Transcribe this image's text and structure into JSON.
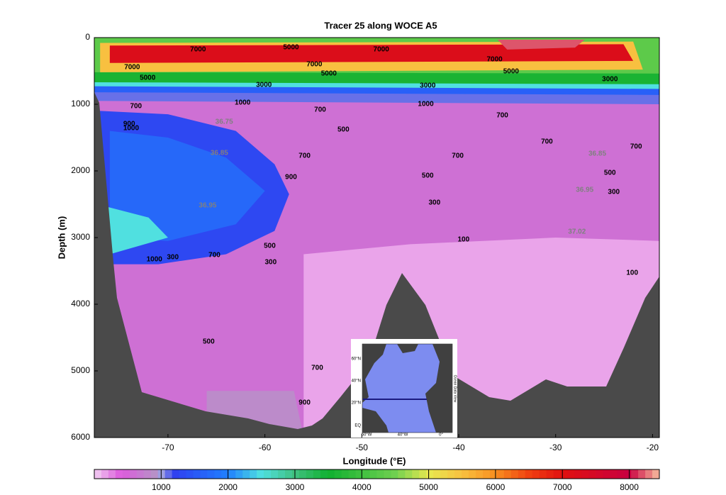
{
  "chart_data": {
    "type": "contour",
    "title": "Tracer 25 along WOCE A5",
    "xlabel": "Longitude (°E)",
    "ylabel": "Depth (m)",
    "xlim": [
      -77.6,
      -19.3
    ],
    "ylim": [
      0,
      6000
    ],
    "y_reversed": true,
    "xticks": [
      -70,
      -60,
      -50,
      -40,
      -30,
      -20
    ],
    "yticks": [
      0,
      1000,
      2000,
      3000,
      4000,
      5000,
      6000
    ],
    "colorbar": {
      "clim": [
        0,
        8450
      ],
      "ticks": [
        1000,
        2000,
        3000,
        4000,
        5000,
        6000,
        7000,
        8000
      ],
      "colormap": [
        [
          0,
          "#f2d0f2"
        ],
        [
          400,
          "#dc5adc"
        ],
        [
          900,
          "#b890c8"
        ],
        [
          1000,
          "#a0a0e0"
        ],
        [
          1200,
          "#3040f0"
        ],
        [
          2000,
          "#2080ff"
        ],
        [
          2500,
          "#50e0e0"
        ],
        [
          3000,
          "#40c080"
        ],
        [
          3500,
          "#10b030"
        ],
        [
          4500,
          "#70d050"
        ],
        [
          5000,
          "#e8e850"
        ],
        [
          5500,
          "#f8c040"
        ],
        [
          6000,
          "#f89020"
        ],
        [
          6500,
          "#f04010"
        ],
        [
          7000,
          "#e01010"
        ],
        [
          8000,
          "#c80040"
        ],
        [
          8450,
          "#f8c0a0"
        ]
      ]
    },
    "regions": [
      {
        "value": 600,
        "points": [
          [
            -77.6,
            0
          ],
          [
            -19.3,
            0
          ],
          [
            -19.3,
            6000
          ],
          [
            -77.6,
            6000
          ]
        ]
      },
      {
        "value": 150,
        "points": [
          [
            -56,
            3250
          ],
          [
            -45,
            3100
          ],
          [
            -30,
            3000
          ],
          [
            -19.3,
            3050
          ],
          [
            -19.3,
            6000
          ],
          [
            -56,
            6000
          ]
        ]
      },
      {
        "value": 850,
        "points": [
          [
            -66,
            5300
          ],
          [
            -57,
            5300
          ],
          [
            -56,
            6000
          ],
          [
            -66,
            6000
          ]
        ]
      },
      {
        "value": 1300,
        "points": [
          [
            -77,
            1100
          ],
          [
            -70,
            1150
          ],
          [
            -63,
            1400
          ],
          [
            -59,
            1900
          ],
          [
            -57.5,
            2350
          ],
          [
            -59,
            2900
          ],
          [
            -64,
            3250
          ],
          [
            -71,
            3400
          ],
          [
            -76.5,
            3400
          ],
          [
            -77.5,
            2500
          ],
          [
            -77.5,
            1200
          ]
        ]
      },
      {
        "value": 1700,
        "points": [
          [
            -76,
            1400
          ],
          [
            -70,
            1500
          ],
          [
            -64,
            1800
          ],
          [
            -60,
            2300
          ],
          [
            -63,
            2800
          ],
          [
            -70,
            3050
          ],
          [
            -76,
            3000
          ]
        ]
      },
      {
        "value": 2500,
        "points": [
          [
            -77.3,
            2500
          ],
          [
            -72,
            2700
          ],
          [
            -70,
            3000
          ],
          [
            -76,
            3250
          ],
          [
            -77.3,
            3200
          ]
        ]
      },
      {
        "value": 4300,
        "points": [
          [
            -77.6,
            0
          ],
          [
            -19.3,
            0
          ],
          [
            -19.3,
            700
          ],
          [
            -77.6,
            700
          ]
        ]
      },
      {
        "value": 1100,
        "points": [
          [
            -77.6,
            800
          ],
          [
            -19.3,
            850
          ],
          [
            -19.3,
            1000
          ],
          [
            -77.6,
            950
          ]
        ]
      },
      {
        "value": 1600,
        "points": [
          [
            -77.6,
            720
          ],
          [
            -19.3,
            760
          ],
          [
            -19.3,
            860
          ],
          [
            -77.6,
            820
          ]
        ]
      },
      {
        "value": 2500,
        "points": [
          [
            -77.6,
            660
          ],
          [
            -19.3,
            690
          ],
          [
            -19.3,
            770
          ],
          [
            -77.6,
            730
          ]
        ]
      },
      {
        "value": 3600,
        "points": [
          [
            -77.6,
            520
          ],
          [
            -19.3,
            540
          ],
          [
            -19.3,
            700
          ],
          [
            -77.6,
            670
          ]
        ]
      },
      {
        "value": 5500,
        "points": [
          [
            -77,
            80
          ],
          [
            -22,
            60
          ],
          [
            -21,
            480
          ],
          [
            -77,
            520
          ]
        ]
      },
      {
        "value": 7200,
        "points": [
          [
            -76,
            120
          ],
          [
            -23,
            100
          ],
          [
            -22,
            350
          ],
          [
            -76,
            380
          ]
        ]
      },
      {
        "value": 8200,
        "points": [
          [
            -36,
            30
          ],
          [
            -27,
            30
          ],
          [
            -28,
            150
          ],
          [
            -35,
            180
          ]
        ]
      }
    ],
    "contour_labels": [
      {
        "level": 7000,
        "x": -66.9,
        "y": 181
      },
      {
        "level": 5000,
        "x": -57.3,
        "y": 149
      },
      {
        "level": 7000,
        "x": -48.0,
        "y": 181
      },
      {
        "level": 7000,
        "x": -73.7,
        "y": 447
      },
      {
        "level": 7000,
        "x": -54.9,
        "y": 404
      },
      {
        "level": 7000,
        "x": -36.3,
        "y": 330
      },
      {
        "level": 5000,
        "x": -72.1,
        "y": 606
      },
      {
        "level": 5000,
        "x": -53.4,
        "y": 543
      },
      {
        "level": 5000,
        "x": -34.6,
        "y": 511
      },
      {
        "level": 3000,
        "x": -60.1,
        "y": 713
      },
      {
        "level": 3000,
        "x": -43.2,
        "y": 723
      },
      {
        "level": 3000,
        "x": -24.4,
        "y": 628
      },
      {
        "level": 700,
        "x": -73.3,
        "y": 1032
      },
      {
        "level": 1000,
        "x": -62.3,
        "y": 979
      },
      {
        "level": 700,
        "x": -54.3,
        "y": 1085
      },
      {
        "level": 1000,
        "x": -43.4,
        "y": 1000
      },
      {
        "level": 700,
        "x": -35.5,
        "y": 1170
      },
      {
        "level": 500,
        "x": -51.9,
        "y": 1383
      },
      {
        "level": 900,
        "x": -74.0,
        "y": 1298
      },
      {
        "level": 1000,
        "x": -73.8,
        "y": 1362
      },
      {
        "level": 700,
        "x": -55.9,
        "y": 1777
      },
      {
        "level": 700,
        "x": -30.9,
        "y": 1564
      },
      {
        "level": 700,
        "x": -40.1,
        "y": 1777
      },
      {
        "level": 700,
        "x": -21.7,
        "y": 1638
      },
      {
        "level": 900,
        "x": -57.3,
        "y": 2096
      },
      {
        "level": 500,
        "x": -43.2,
        "y": 2074
      },
      {
        "level": 500,
        "x": -24.4,
        "y": 2032
      },
      {
        "level": 300,
        "x": -42.5,
        "y": 2479
      },
      {
        "level": 300,
        "x": -24.0,
        "y": 2319
      },
      {
        "level": 100,
        "x": -39.5,
        "y": 3032
      },
      {
        "level": 1000,
        "x": -71.4,
        "y": 3330
      },
      {
        "level": 300,
        "x": -69.5,
        "y": 3298
      },
      {
        "level": 700,
        "x": -65.2,
        "y": 3266
      },
      {
        "level": 500,
        "x": -59.5,
        "y": 3128
      },
      {
        "level": 300,
        "x": -59.4,
        "y": 3372
      },
      {
        "level": 100,
        "x": -22.1,
        "y": 3532
      },
      {
        "level": 500,
        "x": -65.8,
        "y": 4564
      },
      {
        "level": 700,
        "x": -54.6,
        "y": 4957
      },
      {
        "level": 900,
        "x": -55.9,
        "y": 5479
      }
    ],
    "density_labels": [
      {
        "level": 36.75,
        "x": -64.2,
        "y": 1266
      },
      {
        "level": 36.85,
        "x": -64.7,
        "y": 1734
      },
      {
        "level": 36.95,
        "x": -65.9,
        "y": 2521
      },
      {
        "level": 36.85,
        "x": -25.7,
        "y": 1745
      },
      {
        "level": 36.95,
        "x": -27.0,
        "y": 2287
      },
      {
        "level": 37.02,
        "x": -27.8,
        "y": 2915
      }
    ],
    "inset": {
      "lat_labels": [
        "60°N",
        "40°N",
        "20°N",
        "EQ"
      ],
      "lon_labels": [
        "60°W",
        "40°W",
        "0°"
      ],
      "credit": "Ocean Data View"
    }
  }
}
